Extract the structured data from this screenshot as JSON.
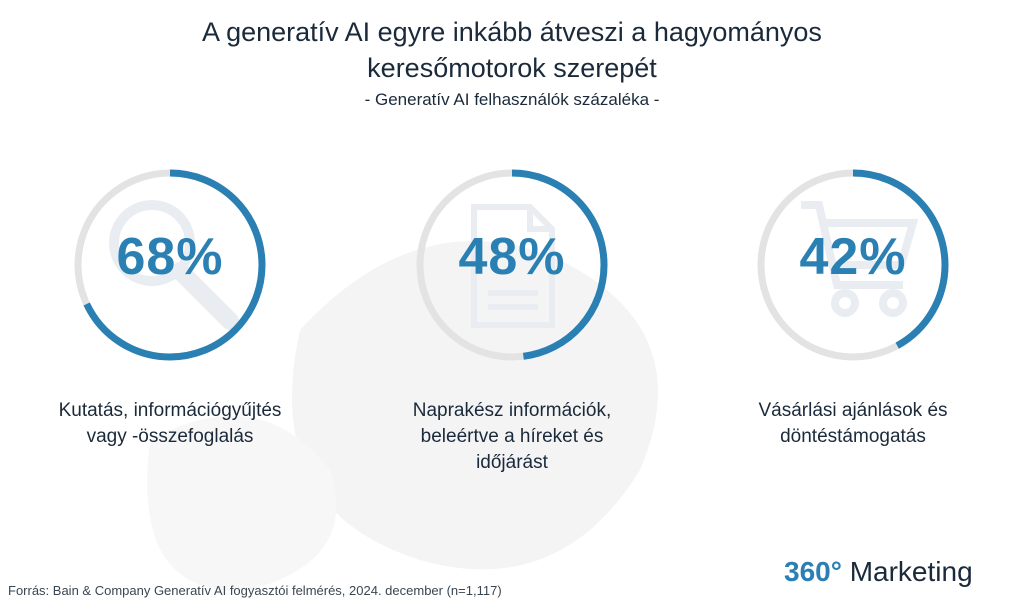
{
  "title_line1": "A generatív AI egyre inkább átveszi a hagyományos",
  "title_line2": "keresőmotorok szerepét",
  "subtitle": "- Generatív AI felhasználók százaléka -",
  "colors": {
    "accent": "#2a7fb3",
    "track": "#e3e3e3",
    "text": "#1b2a3a"
  },
  "chart_data": {
    "type": "donut",
    "items": [
      {
        "value": 68,
        "display": "68%",
        "label_lines": [
          "Kutatás, információgyűjtés",
          "vagy -összefoglalás"
        ],
        "icon": "magnifier-icon"
      },
      {
        "value": 48,
        "display": "48%",
        "label_lines": [
          "Naprakész információk,",
          "beleértve a híreket és",
          "időjárást"
        ],
        "icon": "document-icon"
      },
      {
        "value": 42,
        "display": "42%",
        "label_lines": [
          "Vásárlási ajánlások és",
          "döntéstámogatás"
        ],
        "icon": "shopping-cart-icon"
      }
    ]
  },
  "source": "Forrás: Bain & Company Generatív AI fogyasztói felmérés, 2024. december (n=1,117)",
  "logo": {
    "number": "360°",
    "word": "Marketing"
  }
}
